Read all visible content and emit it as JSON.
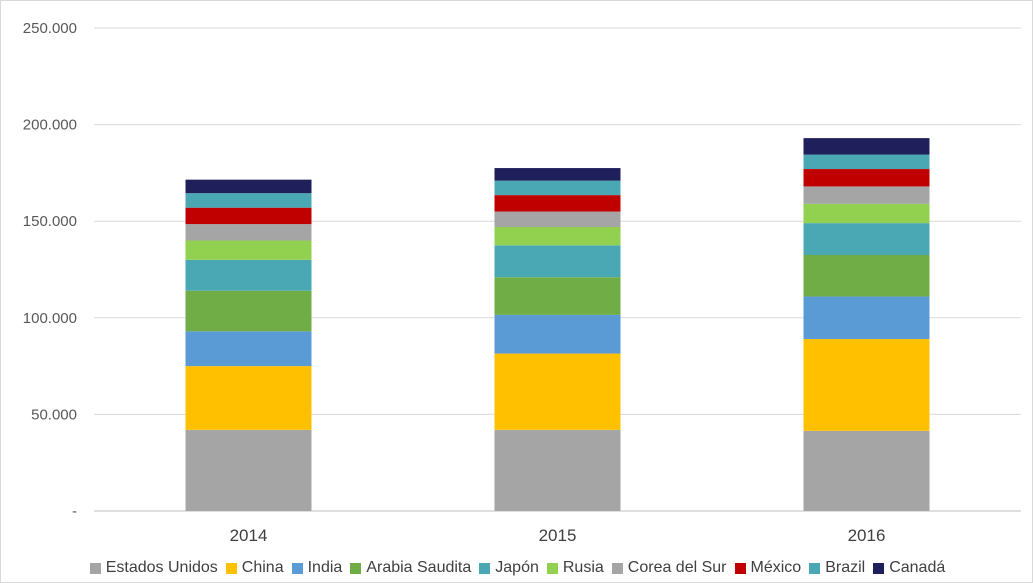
{
  "chart_data": {
    "type": "bar",
    "stacked": true,
    "categories": [
      "2014",
      "2015",
      "2016"
    ],
    "ylim": [
      0,
      250000
    ],
    "yticks": [
      {
        "value": 0,
        "label": "-"
      },
      {
        "value": 50000,
        "label": "50.000"
      },
      {
        "value": 100000,
        "label": "100.000"
      },
      {
        "value": 150000,
        "label": "150.000"
      },
      {
        "value": 200000,
        "label": "200.000"
      },
      {
        "value": 250000,
        "label": "250.000"
      }
    ],
    "grid": true,
    "legend_position": "bottom",
    "series": [
      {
        "name": "Estados Unidos",
        "color": "#a5a5a5",
        "values": [
          42000,
          42000,
          41500
        ]
      },
      {
        "name": "China",
        "color": "#ffc000",
        "values": [
          33000,
          39500,
          47500
        ]
      },
      {
        "name": "India",
        "color": "#5b9bd5",
        "values": [
          18000,
          20000,
          22000
        ]
      },
      {
        "name": "Arabia Saudita",
        "color": "#70ad47",
        "values": [
          21000,
          19500,
          21500
        ]
      },
      {
        "name": "Japón",
        "color": "#4aa8b4",
        "values": [
          16000,
          16500,
          16500
        ]
      },
      {
        "name": "Rusia",
        "color": "#92d050",
        "values": [
          10000,
          9500,
          10000
        ]
      },
      {
        "name": "Corea del Sur",
        "color": "#a5a5a5",
        "values": [
          8500,
          8000,
          9000
        ]
      },
      {
        "name": "México",
        "color": "#c00000",
        "values": [
          8500,
          8500,
          9000
        ]
      },
      {
        "name": "Brazil",
        "color": "#4aa8b4",
        "values": [
          7500,
          7500,
          7500
        ]
      },
      {
        "name": "Canadá",
        "color": "#1f1f5c",
        "values": [
          7000,
          6500,
          8500
        ]
      }
    ]
  }
}
